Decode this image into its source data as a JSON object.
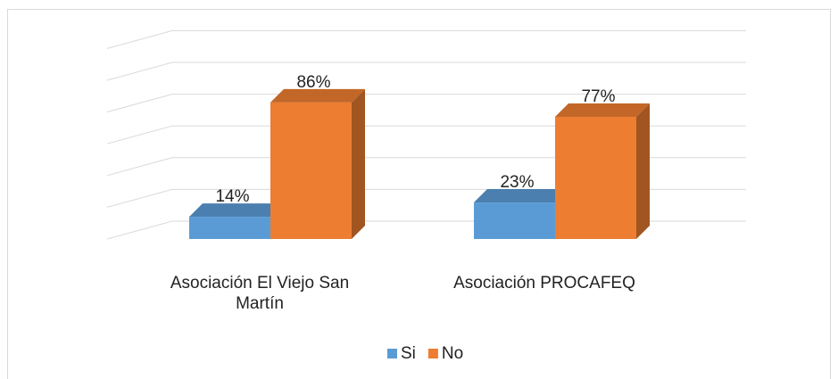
{
  "chart_data": {
    "type": "bar3d",
    "categories": [
      "Asociación El Viejo San Martín",
      "Asociación PROCAFEQ"
    ],
    "series": [
      {
        "name": "Si",
        "color": "#5b9bd5",
        "values": [
          14,
          23
        ],
        "value_labels": [
          "14%",
          "23%"
        ]
      },
      {
        "name": "No",
        "color": "#ed7d31",
        "values": [
          86,
          77
        ],
        "value_labels": [
          "86%",
          "77%"
        ]
      }
    ],
    "ylim": [
      0,
      120
    ],
    "yticks": [
      0,
      20,
      40,
      60,
      80,
      100,
      120
    ],
    "grid": true,
    "legend": "bottom"
  }
}
